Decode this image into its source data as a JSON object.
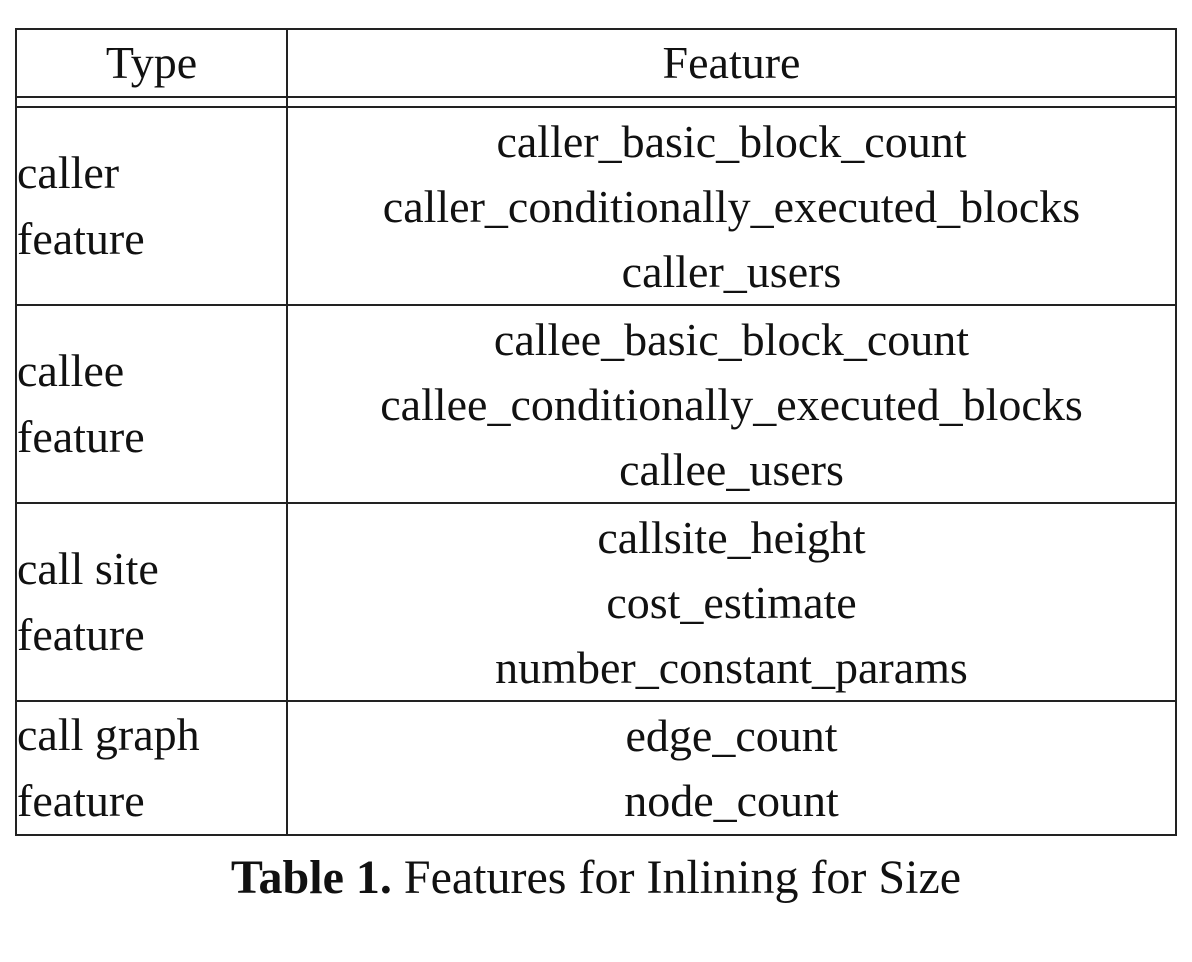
{
  "table": {
    "headers": {
      "type": "Type",
      "feature": "Feature"
    },
    "rows": [
      {
        "type": [
          "caller",
          "feature"
        ],
        "features": [
          "caller_basic_block_count",
          "caller_conditionally_executed_blocks",
          "caller_users"
        ]
      },
      {
        "type": [
          "callee",
          "feature"
        ],
        "features": [
          "callee_basic_block_count",
          "callee_conditionally_executed_blocks",
          "callee_users"
        ]
      },
      {
        "type": [
          "call site",
          "feature"
        ],
        "features": [
          "callsite_height",
          "cost_estimate",
          "number_constant_params"
        ]
      },
      {
        "type": [
          "call graph",
          "feature"
        ],
        "features": [
          "edge_count",
          "node_count"
        ]
      }
    ]
  },
  "caption": {
    "label": "Table 1.",
    "text": " Features for Inlining for Size"
  }
}
